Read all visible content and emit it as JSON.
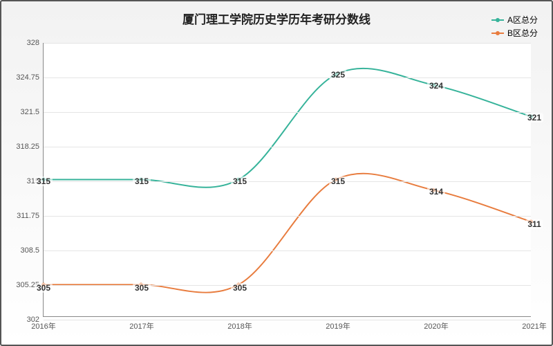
{
  "chart": {
    "type": "line",
    "title": "厦门理工学院历史学历年考研分数线",
    "title_fontsize": 17,
    "background_gradient": [
      "#f2f2f2",
      "#ffffff"
    ],
    "border_color": "#555555",
    "plot_background": "#ffffff",
    "grid_color": "#e5e5e5",
    "axis_color": "#888888",
    "tick_label_color": "#555555",
    "tick_fontsize": 11,
    "data_label_fontsize": 12,
    "x_categories": [
      "2016年",
      "2017年",
      "2018年",
      "2019年",
      "2020年",
      "2021年"
    ],
    "ylim": [
      302,
      328
    ],
    "ytick_step": 3.25,
    "yticks": [
      302,
      305.25,
      308.5,
      311.75,
      315,
      318.25,
      321.5,
      324.75,
      328
    ],
    "line_width": 2,
    "marker_radius": 3,
    "smooth": true,
    "series": [
      {
        "name": "A区总分",
        "color": "#36b39a",
        "values": [
          315,
          315,
          315,
          325,
          324,
          321
        ]
      },
      {
        "name": "B区总分",
        "color": "#e87c3e",
        "values": [
          305,
          305,
          305,
          315,
          314,
          311
        ]
      }
    ],
    "legend_position": "top-right"
  }
}
